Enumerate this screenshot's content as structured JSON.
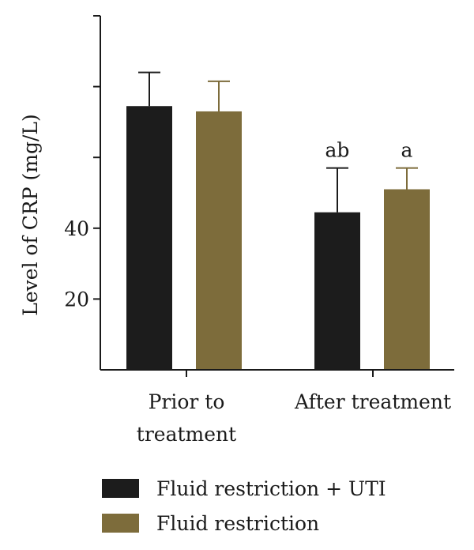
{
  "chart_data": {
    "type": "bar",
    "title": "",
    "xlabel": "",
    "ylabel": "Level of CRP (mg/L)",
    "ylim": [
      0,
      100
    ],
    "yticks": [
      20,
      40,
      60,
      80,
      100
    ],
    "ytick_labels": [
      "20",
      "40",
      "",
      "",
      ""
    ],
    "categories": [
      {
        "lines": [
          "Prior to",
          "treatment"
        ]
      },
      {
        "lines": [
          "After treatment"
        ]
      }
    ],
    "series": [
      {
        "name": "Fluid restriction + UTI",
        "color": "#1c1c1c",
        "values": [
          74.5,
          44.5
        ],
        "errors": [
          9.5,
          12.5
        ],
        "annotations": [
          "",
          "ab"
        ]
      },
      {
        "name": "Fluid restriction",
        "color": "#7d6c3b",
        "values": [
          73,
          51
        ],
        "errors": [
          8.5,
          6
        ],
        "annotations": [
          "",
          "a"
        ]
      }
    ],
    "legend_position": "bottom"
  }
}
